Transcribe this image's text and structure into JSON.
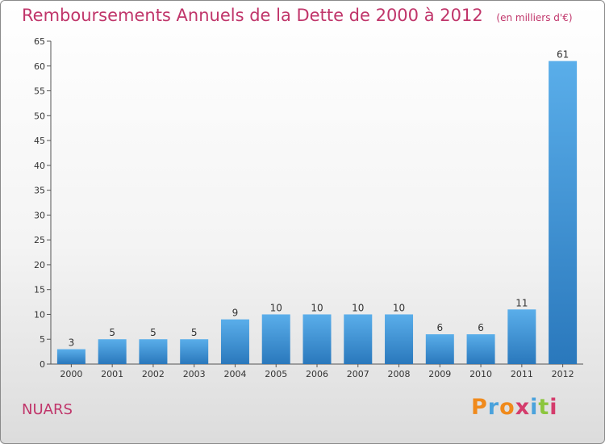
{
  "header": {
    "title": "Remboursements Annuels de la Dette de 2000 à 2012",
    "unit": "(en milliers d'€)"
  },
  "footer": {
    "town": "NUARS",
    "logo_text": "Proxiti"
  },
  "colors": {
    "title": "#c0356a",
    "bar_top": "#5aaeea",
    "bar_bottom": "#2a78bc",
    "logo_letters": [
      "#f08a1c",
      "#4aa2dc",
      "#f08a1c",
      "#d43c6c",
      "#4aa2dc",
      "#8cc63e",
      "#d43c6c"
    ]
  },
  "chart_data": {
    "type": "bar",
    "title": "Remboursements Annuels de la Dette de 2000 à 2012",
    "categories": [
      "2000",
      "2001",
      "2002",
      "2003",
      "2004",
      "2005",
      "2006",
      "2007",
      "2008",
      "2009",
      "2010",
      "2011",
      "2012"
    ],
    "values": [
      3,
      5,
      5,
      5,
      9,
      10,
      10,
      10,
      10,
      6,
      6,
      11,
      61
    ],
    "ylim": [
      0,
      65
    ],
    "yticks": [
      0,
      5,
      10,
      15,
      20,
      25,
      30,
      35,
      40,
      45,
      50,
      55,
      60,
      65
    ],
    "grid": false,
    "legend": "none"
  }
}
